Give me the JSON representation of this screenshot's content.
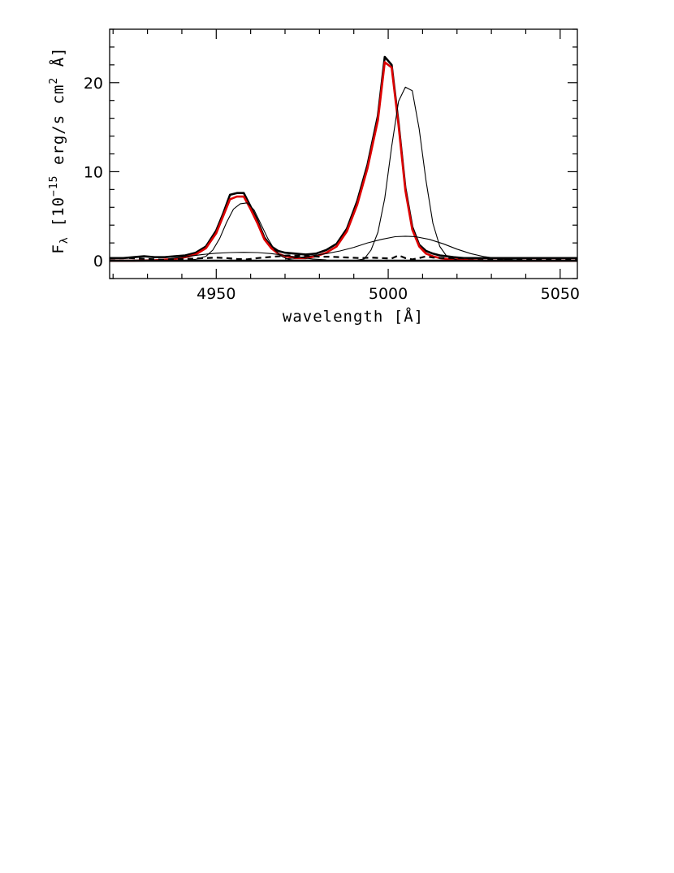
{
  "chart_data": {
    "type": "line",
    "title": "",
    "xlabel": "wavelength [Å]",
    "ylabel": {
      "symbol": "F",
      "subscript": "λ",
      "units_prefix": "[10",
      "exponent": "−15",
      "units_mid": " erg/s cm",
      "units_sup": "2",
      "units_suffix": " Å]"
    },
    "xlim": [
      4919,
      5055
    ],
    "ylim": [
      -2,
      26
    ],
    "xticks": [
      4950,
      5000,
      5050
    ],
    "yticks": [
      0,
      10,
      20
    ],
    "x_minor_step": 10,
    "y_minor_step": 2,
    "grid": false,
    "series": [
      {
        "role": "observed",
        "color": "#000000",
        "style": "solid-thick",
        "x": [
          4919,
          4923,
          4926,
          4929,
          4932,
          4935,
          4938,
          4941,
          4944,
          4947,
          4950,
          4952,
          4954,
          4956,
          4958,
          4960,
          4962,
          4964,
          4966,
          4968,
          4970,
          4973,
          4976,
          4979,
          4982,
          4985,
          4988,
          4991,
          4994,
          4997,
          4999,
          5001,
          5003,
          5005,
          5007,
          5009,
          5011,
          5013,
          5015,
          5017,
          5019,
          5022,
          5025,
          5028,
          5031,
          5034,
          5037,
          5040,
          5043,
          5046,
          5049,
          5052,
          5055
        ],
        "y": [
          0.3,
          0.3,
          0.4,
          0.5,
          0.4,
          0.4,
          0.5,
          0.6,
          0.9,
          1.6,
          3.4,
          5.3,
          7.4,
          7.6,
          7.6,
          6.1,
          4.5,
          2.6,
          1.6,
          1.1,
          0.9,
          0.8,
          0.7,
          0.8,
          1.2,
          1.9,
          3.6,
          6.7,
          10.8,
          16.3,
          22.9,
          22.0,
          15.5,
          8.2,
          3.8,
          1.8,
          1.1,
          0.8,
          0.6,
          0.5,
          0.4,
          0.3,
          0.3,
          0.3,
          0.3,
          0.3,
          0.3,
          0.3,
          0.3,
          0.3,
          0.3,
          0.3,
          0.3
        ]
      },
      {
        "role": "model",
        "color": "#dd0000",
        "style": "solid-thick",
        "x": [
          4919,
          4926,
          4932,
          4938,
          4941,
          4944,
          4947,
          4950,
          4952,
          4954,
          4956,
          4958,
          4960,
          4962,
          4964,
          4966,
          4968,
          4970,
          4973,
          4976,
          4979,
          4982,
          4985,
          4988,
          4991,
          4994,
          4997,
          4999,
          5001,
          5003,
          5005,
          5007,
          5009,
          5011,
          5013,
          5015,
          5017,
          5019,
          5022,
          5025,
          5028,
          5031,
          5034,
          5037,
          5040,
          5043,
          5046,
          5049,
          5052,
          5055
        ],
        "y": [
          0.0,
          0.0,
          0.05,
          0.2,
          0.4,
          0.7,
          1.4,
          3.1,
          5.0,
          6.9,
          7.2,
          7.2,
          5.8,
          4.2,
          2.4,
          1.4,
          0.8,
          0.5,
          0.3,
          0.3,
          0.5,
          0.9,
          1.6,
          3.3,
          6.3,
          10.4,
          15.8,
          22.3,
          21.7,
          15.2,
          7.9,
          3.5,
          1.6,
          0.8,
          0.5,
          0.3,
          0.2,
          0.15,
          0.1,
          0.05,
          0.0,
          0.0,
          0.0,
          0.0,
          0.0,
          0.0,
          0.0,
          0.0,
          0.0,
          0.0
        ]
      },
      {
        "role": "narrow-components",
        "color": "#000000",
        "style": "solid-thin",
        "x": [
          4919,
          4938,
          4941,
          4944,
          4947,
          4949,
          4951,
          4953,
          4955,
          4957,
          4959,
          4961,
          4963,
          4965,
          4967,
          4969,
          4971,
          4974,
          4980,
          4990,
          4993,
          4995,
          4997,
          4999,
          5001,
          5003,
          5005,
          5007,
          5009,
          5011,
          5013,
          5015,
          5017,
          5020,
          5023,
          5055
        ],
        "y": [
          0,
          0,
          0.05,
          0.15,
          0.5,
          1.2,
          2.5,
          4.3,
          5.8,
          6.4,
          6.5,
          5.7,
          4.1,
          2.5,
          1.2,
          0.5,
          0.15,
          0,
          0,
          0,
          0.2,
          1.2,
          3.2,
          7.0,
          12.8,
          17.9,
          19.5,
          19.1,
          14.8,
          9.0,
          4.2,
          1.6,
          0.5,
          0.1,
          0,
          0
        ]
      },
      {
        "role": "broad-component-4959",
        "color": "#000000",
        "style": "solid-thin",
        "x": [
          4936,
          4942,
          4946,
          4950,
          4954,
          4958,
          4962,
          4966,
          4970,
          4974,
          4978,
          4982
        ],
        "y": [
          0.2,
          0.5,
          0.7,
          0.85,
          0.92,
          0.95,
          0.92,
          0.8,
          0.6,
          0.4,
          0.2,
          0.1
        ]
      },
      {
        "role": "broad-component-5007",
        "color": "#000000",
        "style": "solid-thin",
        "x": [
          4970,
          4976,
          4982,
          4986,
          4990,
          4994,
          4998,
          5002,
          5005,
          5008,
          5012,
          5016,
          5020,
          5024,
          5028,
          5034,
          5040
        ],
        "y": [
          0.2,
          0.45,
          0.8,
          1.1,
          1.5,
          2.0,
          2.4,
          2.7,
          2.75,
          2.7,
          2.4,
          1.9,
          1.3,
          0.8,
          0.45,
          0.15,
          0.05
        ]
      },
      {
        "role": "residual",
        "color": "#000000",
        "style": "dashed",
        "x": [
          4919,
          4925,
          4930,
          4935,
          4938,
          4941,
          4944,
          4947,
          4950,
          4953,
          4956,
          4959,
          4962,
          4965,
          4968,
          4971,
          4974,
          4977,
          4980,
          4983,
          4986,
          4989,
          4992,
          4995,
          4998,
          5001,
          5003,
          5005,
          5007,
          5009,
          5011,
          5013,
          5016,
          5020,
          5025,
          5030,
          5035,
          5040,
          5045,
          5050,
          5055
        ],
        "y": [
          0.25,
          0.3,
          0.2,
          0.1,
          0.15,
          0.2,
          0.25,
          0.3,
          0.35,
          0.3,
          0.2,
          0.15,
          0.3,
          0.4,
          0.5,
          0.6,
          0.55,
          0.5,
          0.45,
          0.45,
          0.4,
          0.35,
          0.3,
          0.35,
          0.3,
          0.25,
          0.6,
          0.3,
          0.15,
          0.3,
          0.5,
          0.35,
          0.3,
          0.3,
          0.25,
          0.2,
          0.15,
          0.1,
          0.1,
          0.1,
          0.1
        ]
      },
      {
        "role": "zero-line",
        "color": "#000000",
        "style": "solid-thick",
        "x": [
          4919,
          5055
        ],
        "y": [
          0,
          0
        ]
      }
    ]
  }
}
